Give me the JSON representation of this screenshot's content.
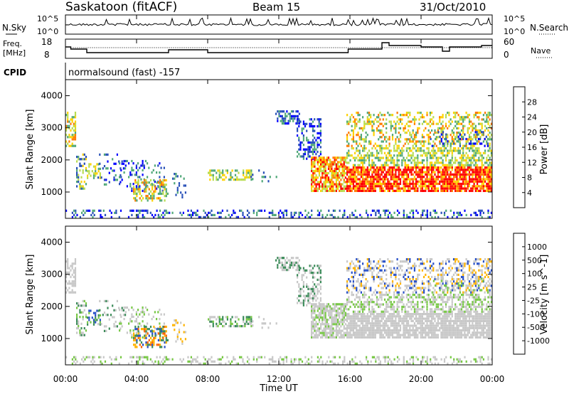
{
  "header": {
    "station": "Saskatoon (fitACF)",
    "beam": "Beam 15",
    "date": "31/Oct/2010"
  },
  "top_panels": {
    "nsky_label": "N.Sky",
    "nsky_ticks": [
      "10^5",
      "10^0"
    ],
    "nsearch_label": "N.Search",
    "nsearch_ticks": [
      "10^5",
      "10^0"
    ],
    "freq_label_1": "Freq.",
    "freq_label_2": "[MHz]",
    "freq_ticks": [
      "18",
      "8"
    ],
    "nave_label": "Nave",
    "nave_ticks": [
      "60",
      "0"
    ],
    "cpid_label": "CPID",
    "cpid_text": "normalsound (fast) -157"
  },
  "chart_data": [
    {
      "type": "heatmap",
      "panel": "power",
      "ylabel": "Slant Range [km]",
      "yticks": [
        "4000",
        "3000",
        "2000",
        "1000"
      ],
      "ylim": [
        180,
        4500
      ],
      "colorbar_label": "Power [dB]",
      "colorbar_ticks": [
        "28",
        "24",
        "20",
        "16",
        "12",
        "8",
        "4"
      ],
      "colorbar_colors": [
        "#ff0000",
        "#ff7a00",
        "#ffd200",
        "#b8dc50",
        "#50a878",
        "#2850b8",
        "#0000ff"
      ]
    },
    {
      "type": "heatmap",
      "panel": "velocity",
      "ylabel": "Slant Range [km]",
      "yticks": [
        "4000",
        "3000",
        "2000",
        "1000"
      ],
      "ylim": [
        180,
        4500
      ],
      "colorbar_label": "Velocity [m s^-1]",
      "colorbar_ticks": [
        "1000",
        "500",
        "100",
        "25",
        "-25",
        "-100",
        "-500",
        "-1000"
      ],
      "colorbar_colors": [
        "#2850c8",
        "#3c8c5a",
        "#78c846",
        "#c8c8c8",
        "#c8c8c8",
        "#ffb400",
        "#ff6400",
        "#ff0000"
      ]
    }
  ],
  "time_axis": {
    "xlabel": "Time UT",
    "ticks": [
      "00:00",
      "04:00",
      "08:00",
      "12:00",
      "16:00",
      "20:00",
      "00:00"
    ],
    "xlim_hours": [
      0,
      24
    ]
  }
}
